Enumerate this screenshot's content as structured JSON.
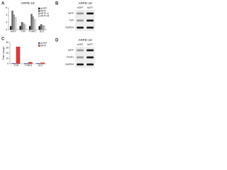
{
  "chart_data": [
    {
      "type": "bar",
      "panel": "A",
      "title": "ARPE-19",
      "categories": [
        "MITF",
        "TYR",
        "TYRP1",
        "DCT"
      ],
      "series": [
        {
          "name": "eGFP",
          "color": "#1a1a1a",
          "values": [
            1,
            1,
            1,
            1
          ]
        },
        {
          "name": "MITF",
          "color": "#6b6b6b",
          "values": [
            5.2,
            2.1,
            4.3,
            1.5
          ]
        },
        {
          "name": "MITF-A",
          "color": "#a8a8a8",
          "values": [
            4.1,
            1.8,
            3.6,
            1.2
          ]
        },
        {
          "name": "MITF-M",
          "color": "#d9d9d9",
          "values": [
            3.4,
            1.4,
            2.9,
            1.1
          ]
        }
      ],
      "ylim": [
        0,
        6
      ],
      "yticks": [
        0,
        2,
        4,
        6
      ]
    },
    {
      "type": "bar",
      "panel": "C",
      "y_label": "Fold change",
      "categories": [
        "TYR",
        "TYRP1",
        "DCT"
      ],
      "series": [
        {
          "name": "eGFP",
          "color": "#3b5fc0",
          "values": [
            1,
            1,
            1
          ]
        },
        {
          "name": "MITF",
          "color": "#d93a3a",
          "values": [
            32,
            3,
            2
          ]
        }
      ],
      "ylim": [
        0,
        40
      ],
      "yticks": [
        0,
        10,
        20,
        30,
        40
      ]
    }
  ],
  "blots": [
    {
      "panel": "B",
      "title": "ARPE-19",
      "lanes": [
        "eGFP",
        "MITF"
      ],
      "rows": [
        "MITF",
        "TYR",
        "GAPDH"
      ]
    },
    {
      "panel": "D",
      "title": "ARPE-19",
      "lanes": [
        "eGFP",
        "MITF"
      ],
      "rows": [
        "MITF",
        "TYRP1",
        "GAPDH"
      ]
    }
  ]
}
